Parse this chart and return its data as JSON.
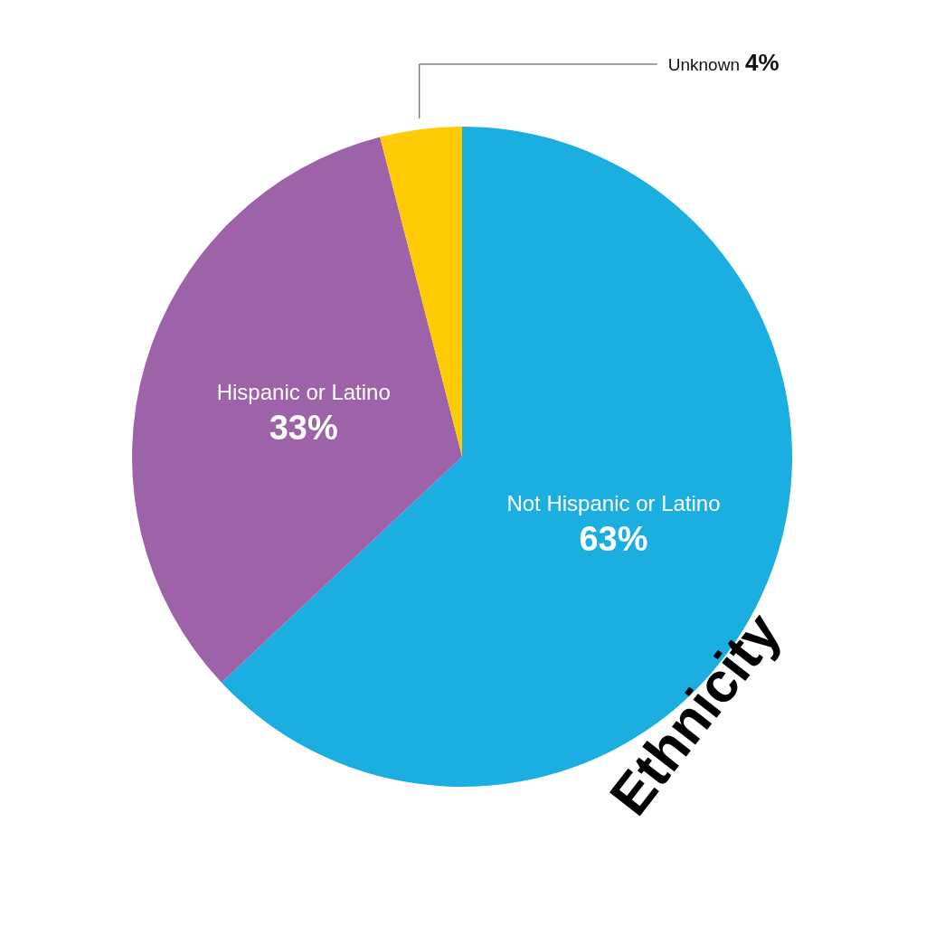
{
  "chart_data": {
    "type": "pie",
    "title": "Ethnicity",
    "categories": [
      "Not Hispanic or Latino",
      "Hispanic or Latino",
      "Unknown"
    ],
    "values": [
      63,
      33,
      4
    ],
    "value_labels": [
      "63%",
      "33%",
      "4%"
    ],
    "colors": [
      "#1baee1",
      "#9e62a8",
      "#fecb05"
    ],
    "legend": false
  }
}
